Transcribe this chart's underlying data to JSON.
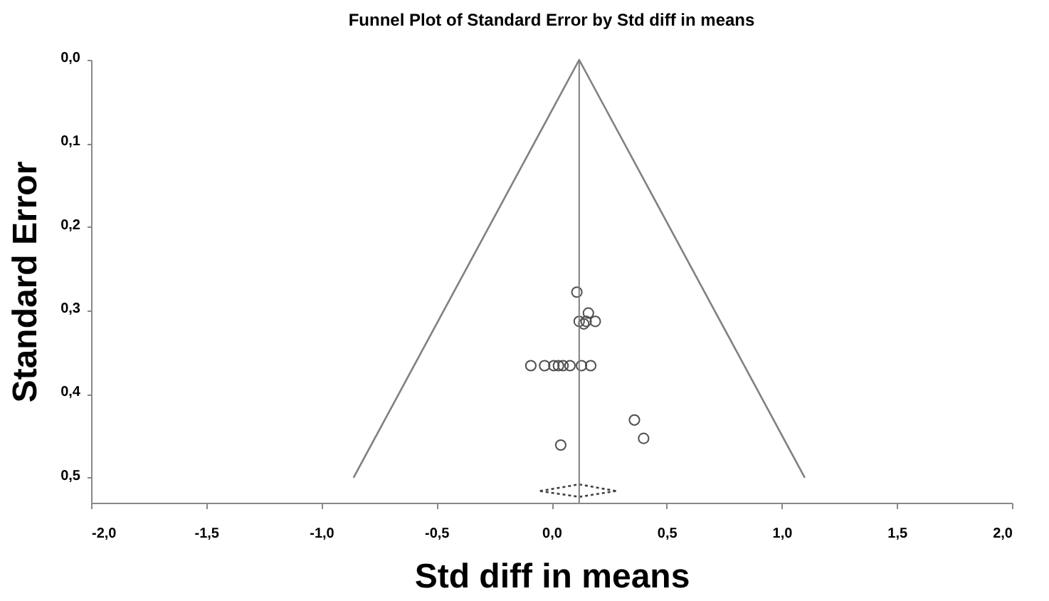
{
  "chart_data": {
    "type": "scatter",
    "title": "Funnel Plot of Standard Error by Std diff in means",
    "xlabel": "Std diff in means",
    "ylabel": "Standard Error",
    "xlim": [
      -2,
      2
    ],
    "ylim": [
      0.53,
      0
    ],
    "xticks": [
      {
        "value": -2,
        "label": "-2,0"
      },
      {
        "value": -1.5,
        "label": "-1,5"
      },
      {
        "value": -1,
        "label": "-1,0"
      },
      {
        "value": -0.5,
        "label": "-0,5"
      },
      {
        "value": 0,
        "label": "0,0"
      },
      {
        "value": 0.5,
        "label": "0,5"
      },
      {
        "value": 1,
        "label": "1,0"
      },
      {
        "value": 1.5,
        "label": "1,5"
      },
      {
        "value": 2,
        "label": "2,0"
      }
    ],
    "yticks": [
      {
        "value": 0,
        "label": "0,0"
      },
      {
        "value": 0.1,
        "label": "0,1"
      },
      {
        "value": 0.2,
        "label": "0,2"
      },
      {
        "value": 0.3,
        "label": "0,3"
      },
      {
        "value": 0.4,
        "label": "0,4"
      },
      {
        "value": 0.5,
        "label": "0,5"
      }
    ],
    "grid": false,
    "ref_lines": [
      {
        "axis": "x",
        "value": 0.12,
        "color": "#808080"
      }
    ],
    "series": [
      {
        "type": "line",
        "color": "#808080",
        "x": [
          -0.86,
          0.12,
          1.1
        ],
        "values": [
          0.5,
          0,
          0.5
        ],
        "marker": "none",
        "line_style": "solid"
      },
      {
        "type": "line",
        "color": "#404040",
        "x": [
          -0.05,
          0.12,
          0.28
        ],
        "values": [
          0.516,
          0.508,
          0.516
        ],
        "marker": "none",
        "line_style": "dotted"
      },
      {
        "type": "line",
        "color": "#404040",
        "x": [
          -0.05,
          0.12,
          0.28
        ],
        "values": [
          0.516,
          0.523,
          0.516
        ],
        "marker": "none",
        "line_style": "dotted"
      },
      {
        "color": "#505050",
        "marker": "circle",
        "x": [
          0.11,
          0.16,
          0.12,
          0.14,
          0.15,
          0.19,
          -0.09,
          -0.03,
          0.01,
          0.03,
          0.05,
          0.08,
          0.13,
          0.17,
          0.36,
          0.4,
          0.04
        ],
        "values": [
          0.278,
          0.303,
          0.313,
          0.316,
          0.313,
          0.313,
          0.366,
          0.366,
          0.366,
          0.366,
          0.366,
          0.366,
          0.366,
          0.366,
          0.431,
          0.453,
          0.461
        ]
      }
    ]
  }
}
